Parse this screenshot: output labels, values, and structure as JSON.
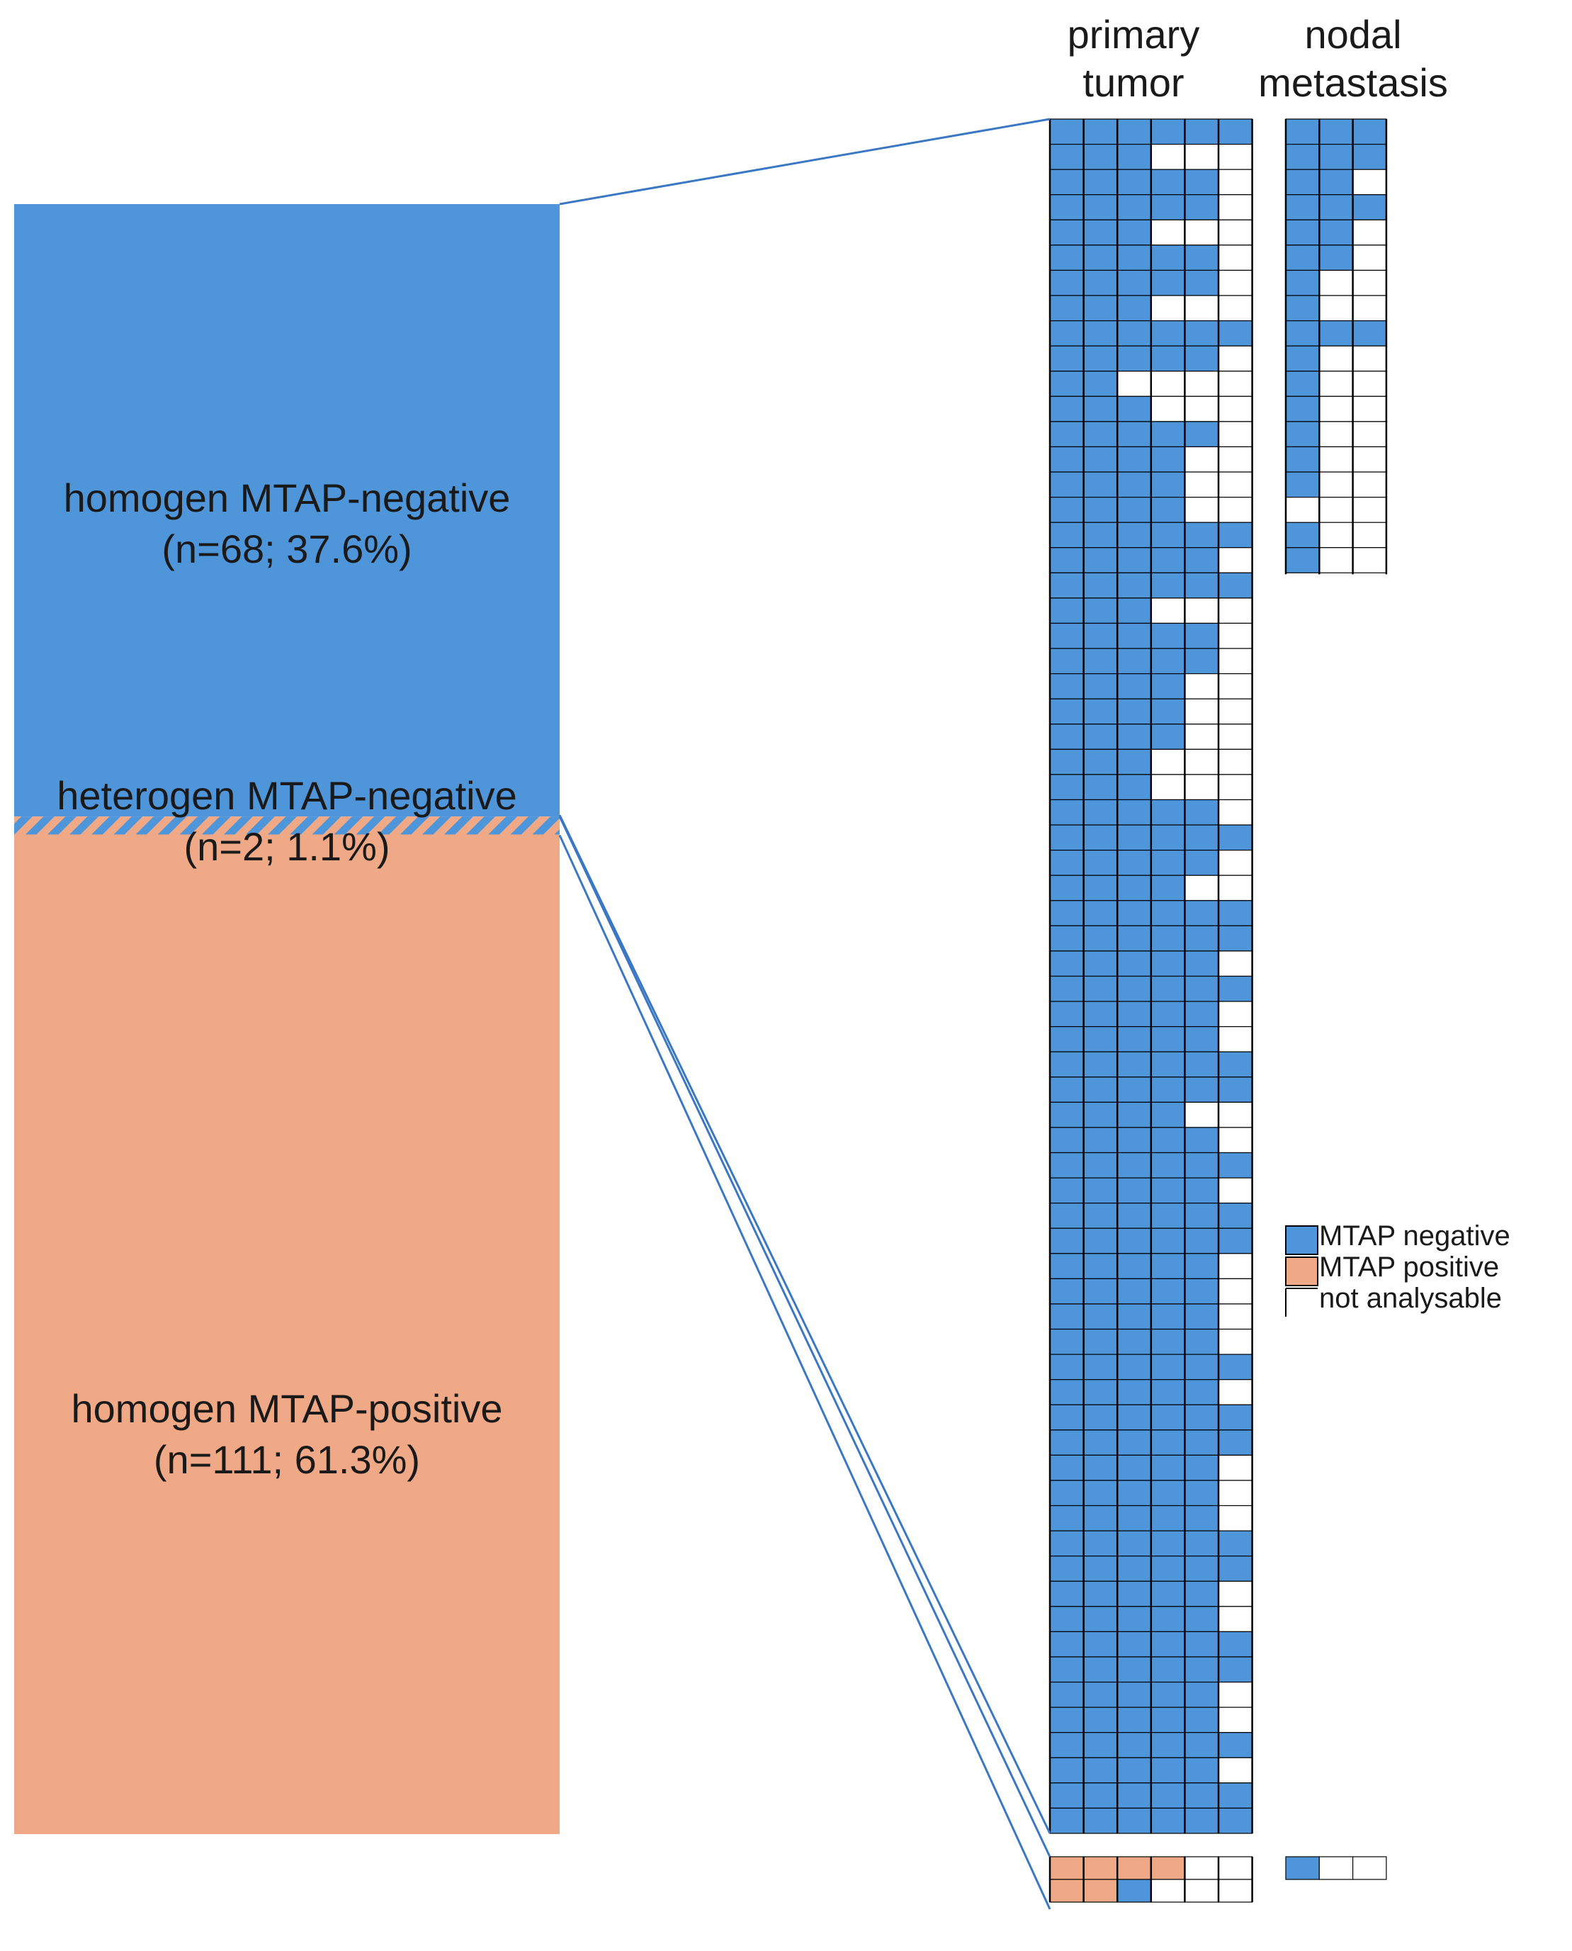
{
  "colors": {
    "negative": "#4f95d9",
    "positive": "#f0a986",
    "empty": "#ffffff",
    "line": "#000000",
    "connector": "#3b78c4"
  },
  "headers": {
    "primary": "primary\ntumor",
    "nodal": "nodal\nmetastasis"
  },
  "groups": {
    "neg": {
      "name": "homogen MTAP-negative",
      "stat": "(n=68; 37.6%)",
      "n": 68,
      "pct": 37.6
    },
    "het": {
      "name": "heterogen MTAP-negative",
      "stat": "(n=2; 1.1%)",
      "n": 2,
      "pct": 1.1
    },
    "pos": {
      "name": "homogen MTAP-positive",
      "stat": "(n=111; 61.3%)",
      "n": 111,
      "pct": 61.3
    }
  },
  "legend": [
    {
      "key": "N",
      "label": "MTAP  negative"
    },
    {
      "key": "P",
      "label": "MTAP  positive"
    },
    {
      "key": "E",
      "label": "not analysable"
    }
  ],
  "cases": [
    {
      "p": "NNNNNN",
      "m": "NNN"
    },
    {
      "p": "NNN",
      "m": "NNN"
    },
    {
      "p": "NNNNN",
      "m": "NN"
    },
    {
      "p": "NNNNN",
      "m": "NNN"
    },
    {
      "p": "NNN",
      "m": "NN"
    },
    {
      "p": "NNNNN",
      "m": "NN"
    },
    {
      "p": "NNNNN",
      "m": "N"
    },
    {
      "p": "NNN",
      "m": "N"
    },
    {
      "p": "NNNNNN",
      "m": "NNN"
    },
    {
      "p": "NNNNN",
      "m": "N"
    },
    {
      "p": "NN",
      "m": "N"
    },
    {
      "p": "NNN",
      "m": "N"
    },
    {
      "p": "NNNNN",
      "m": "N"
    },
    {
      "p": "NNNN",
      "m": "N"
    },
    {
      "p": "NNNN",
      "m": "N"
    },
    {
      "p": "NNNN",
      "m": ""
    },
    {
      "p": "NNNNNN",
      "m": "N"
    },
    {
      "p": "NNNNN",
      "m": "N"
    },
    {
      "p": "NNNNNN",
      "m": ""
    },
    {
      "p": "NNN",
      "m": ""
    },
    {
      "p": "NNNNN",
      "m": ""
    },
    {
      "p": "NNNNN",
      "m": ""
    },
    {
      "p": "NNNN",
      "m": ""
    },
    {
      "p": "NNNN",
      "m": ""
    },
    {
      "p": "NNNN",
      "m": ""
    },
    {
      "p": "NNN",
      "m": ""
    },
    {
      "p": "NNN",
      "m": ""
    },
    {
      "p": "NNNNN",
      "m": ""
    },
    {
      "p": "NNNNNN",
      "m": ""
    },
    {
      "p": "NNNNN",
      "m": ""
    },
    {
      "p": "NNNN",
      "m": ""
    },
    {
      "p": "NNNNNN",
      "m": ""
    },
    {
      "p": "NNNNNN",
      "m": ""
    },
    {
      "p": "NNNNN",
      "m": ""
    },
    {
      "p": "NNNNNN",
      "m": ""
    },
    {
      "p": "NNNNN",
      "m": ""
    },
    {
      "p": "NNNNN",
      "m": ""
    },
    {
      "p": "NNNNNN",
      "m": ""
    },
    {
      "p": "NNNNNN",
      "m": ""
    },
    {
      "p": "NNNN",
      "m": ""
    },
    {
      "p": "NNNNN",
      "m": ""
    },
    {
      "p": "NNNNNN",
      "m": ""
    },
    {
      "p": "NNNNN",
      "m": ""
    },
    {
      "p": "NNNNNN",
      "m": ""
    },
    {
      "p": "NNNNNN",
      "m": ""
    },
    {
      "p": "NNNNN",
      "m": ""
    },
    {
      "p": "NNNNN",
      "m": ""
    },
    {
      "p": "NNNNN",
      "m": ""
    },
    {
      "p": "NNNNN",
      "m": ""
    },
    {
      "p": "NNNNNN",
      "m": ""
    },
    {
      "p": "NNNNN",
      "m": ""
    },
    {
      "p": "NNNNNN",
      "m": ""
    },
    {
      "p": "NNNNNN",
      "m": ""
    },
    {
      "p": "NNNNN",
      "m": ""
    },
    {
      "p": "NNNNN",
      "m": ""
    },
    {
      "p": "NNNNN",
      "m": ""
    },
    {
      "p": "NNNNNN",
      "m": ""
    },
    {
      "p": "NNNNNN",
      "m": ""
    },
    {
      "p": "NNNNN",
      "m": ""
    },
    {
      "p": "NNNNN",
      "m": ""
    },
    {
      "p": "NNNNNN",
      "m": ""
    },
    {
      "p": "NNNNNN",
      "m": ""
    },
    {
      "p": "NNNNN",
      "m": ""
    },
    {
      "p": "NNNNN",
      "m": ""
    },
    {
      "p": "NNNNNN",
      "m": ""
    },
    {
      "p": "NNNNN",
      "m": ""
    },
    {
      "p": "NNNNNN",
      "m": ""
    },
    {
      "p": "NNNNNN",
      "m": ""
    }
  ],
  "het_cases": [
    {
      "p": "PPPPEE",
      "m": "NEE"
    },
    {
      "p": "PPNEEE",
      "m": ""
    }
  ]
}
